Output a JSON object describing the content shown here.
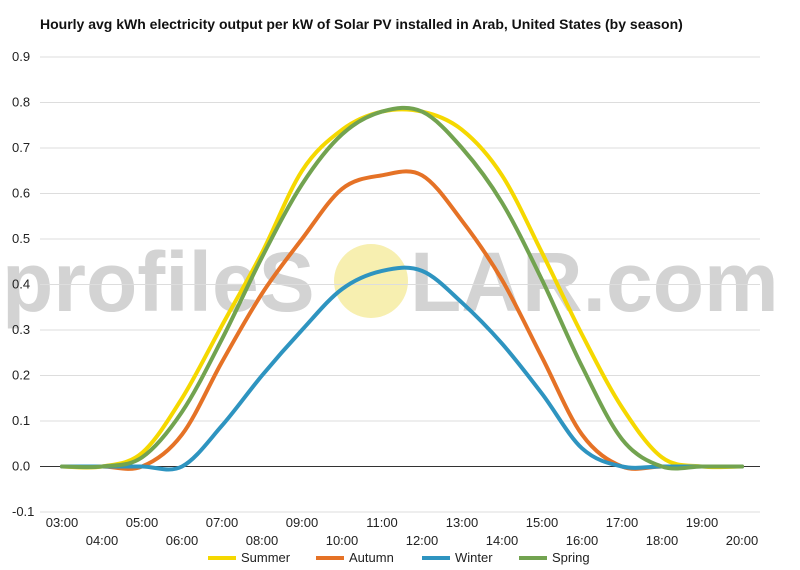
{
  "watermark": {
    "text_left": "profileS",
    "text_right": "LAR.com",
    "sun_color": "#f7efb0"
  },
  "chart_data": {
    "type": "line",
    "title": "Hourly avg kWh electricity output per kW of Solar PV installed in Arab, United States (by season)",
    "xlabel": "",
    "ylabel": "",
    "ylim": [
      -0.1,
      0.9
    ],
    "y_ticks": [
      "-0.1",
      "0.0",
      "0.1",
      "0.2",
      "0.3",
      "0.4",
      "0.5",
      "0.6",
      "0.7",
      "0.8",
      "0.9"
    ],
    "x": [
      "03:00",
      "04:00",
      "05:00",
      "06:00",
      "07:00",
      "08:00",
      "09:00",
      "10:00",
      "11:00",
      "12:00",
      "13:00",
      "14:00",
      "15:00",
      "16:00",
      "17:00",
      "18:00",
      "19:00",
      "20:00"
    ],
    "grid": true,
    "legend": "bottom",
    "series": [
      {
        "name": "Summer",
        "color": "#f5d800",
        "values": [
          0.0,
          0.0,
          0.03,
          0.15,
          0.31,
          0.47,
          0.65,
          0.74,
          0.78,
          0.78,
          0.74,
          0.64,
          0.47,
          0.29,
          0.13,
          0.02,
          0.0,
          0.0
        ]
      },
      {
        "name": "Autumn",
        "color": "#e57226",
        "values": [
          0.0,
          0.0,
          0.0,
          0.07,
          0.23,
          0.38,
          0.5,
          0.61,
          0.64,
          0.64,
          0.54,
          0.41,
          0.24,
          0.07,
          0.0,
          0.0,
          0.0,
          0.0
        ]
      },
      {
        "name": "Winter",
        "color": "#2e94c0",
        "values": [
          0.0,
          0.0,
          0.0,
          0.0,
          0.09,
          0.2,
          0.3,
          0.39,
          0.43,
          0.43,
          0.36,
          0.27,
          0.16,
          0.04,
          0.0,
          0.0,
          0.0,
          0.0
        ]
      },
      {
        "name": "Spring",
        "color": "#72a350",
        "values": [
          0.0,
          0.0,
          0.02,
          0.12,
          0.28,
          0.46,
          0.62,
          0.73,
          0.78,
          0.78,
          0.7,
          0.58,
          0.41,
          0.22,
          0.06,
          0.0,
          0.0,
          0.0
        ]
      }
    ]
  }
}
